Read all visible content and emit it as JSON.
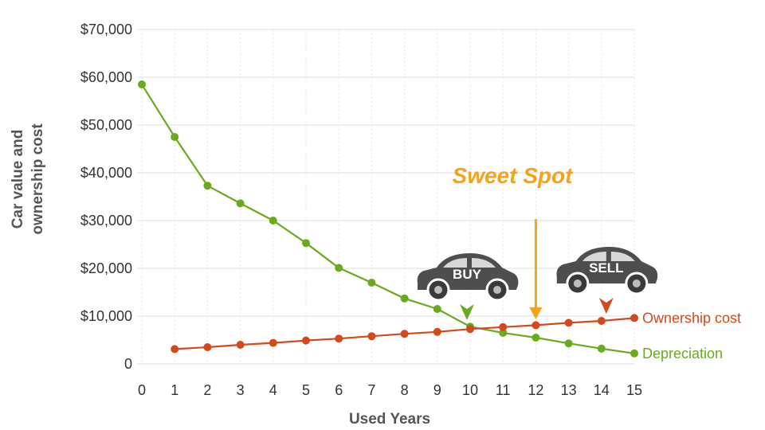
{
  "chart_data": {
    "type": "line",
    "xlabel": "Used Years",
    "ylabel_lines": [
      "Car value and",
      "ownership cost"
    ],
    "x": [
      0,
      1,
      2,
      3,
      4,
      5,
      6,
      7,
      8,
      9,
      10,
      11,
      12,
      13,
      14,
      15
    ],
    "xlim": [
      0,
      15
    ],
    "ylim": [
      0,
      70000
    ],
    "y_ticks": [
      0,
      10000,
      20000,
      30000,
      40000,
      50000,
      60000,
      70000
    ],
    "y_tick_labels": [
      "0",
      "$10,000",
      "$20,000",
      "$30,000",
      "$40,000",
      "$50,000",
      "$60,000",
      "$70,000"
    ],
    "grid": true,
    "series": [
      {
        "name": "Depreciation",
        "color": "#6aaa1f",
        "x": [
          0,
          1,
          2,
          3,
          4,
          5,
          6,
          7,
          8,
          9,
          10,
          11,
          12,
          13,
          14,
          15
        ],
        "values": [
          58500,
          47500,
          37300,
          33600,
          30000,
          25300,
          20100,
          17000,
          13700,
          11500,
          7800,
          6500,
          5500,
          4300,
          3200,
          2200
        ]
      },
      {
        "name": "Ownership cost",
        "color": "#d2491b",
        "x": [
          1,
          2,
          3,
          4,
          5,
          6,
          7,
          8,
          9,
          10,
          11,
          12,
          13,
          14,
          15
        ],
        "values": [
          3100,
          3500,
          4000,
          4400,
          4900,
          5300,
          5800,
          6300,
          6700,
          7300,
          7700,
          8100,
          8600,
          9000,
          9600
        ]
      }
    ],
    "annotations": {
      "sweet_spot": {
        "text": "Sweet Spot",
        "color": "#f5a31a",
        "x": 12
      },
      "buy": {
        "text": "BUY",
        "x": 10,
        "marker_color": "#6aaa1f"
      },
      "sell": {
        "text": "SELL",
        "x": 14,
        "marker_color": "#d2491b"
      }
    }
  }
}
